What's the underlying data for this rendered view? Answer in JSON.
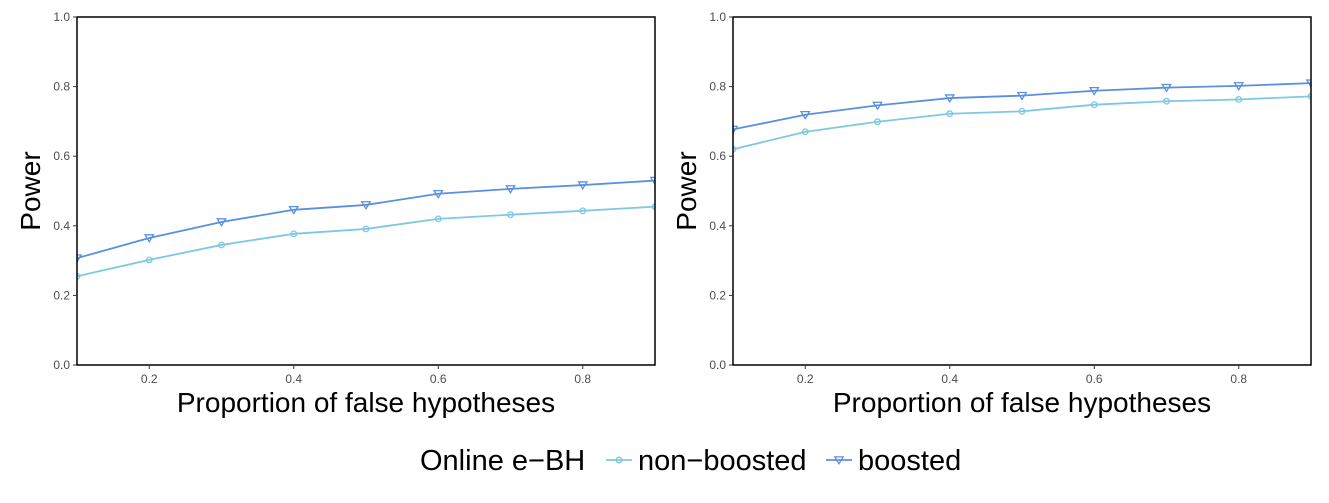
{
  "chart_data": [
    {
      "type": "line",
      "xlabel": "Proportion of false hypotheses",
      "ylabel": "Power",
      "xlim": [
        0.1,
        0.9
      ],
      "ylim": [
        0.0,
        1.0
      ],
      "xticks": [
        "0.2",
        "0.4",
        "0.6",
        "0.8"
      ],
      "yticks": [
        "0.0",
        "0.2",
        "0.4",
        "0.6",
        "0.8",
        "1.0"
      ],
      "grid": false,
      "x": [
        0.1,
        0.2,
        0.3,
        0.4,
        0.5,
        0.6,
        0.7,
        0.8,
        0.9
      ],
      "series": [
        {
          "name": "non−boosted",
          "values": [
            0.255,
            0.302,
            0.345,
            0.377,
            0.391,
            0.42,
            0.432,
            0.443,
            0.455
          ]
        },
        {
          "name": "boosted",
          "values": [
            0.307,
            0.365,
            0.411,
            0.446,
            0.46,
            0.492,
            0.506,
            0.517,
            0.53
          ]
        }
      ]
    },
    {
      "type": "line",
      "xlabel": "Proportion of false hypotheses",
      "ylabel": "Power",
      "xlim": [
        0.1,
        0.9
      ],
      "ylim": [
        0.0,
        1.0
      ],
      "xticks": [
        "0.2",
        "0.4",
        "0.6",
        "0.8"
      ],
      "yticks": [
        "0.0",
        "0.2",
        "0.4",
        "0.6",
        "0.8",
        "1.0"
      ],
      "grid": false,
      "x": [
        0.1,
        0.2,
        0.3,
        0.4,
        0.5,
        0.6,
        0.7,
        0.8,
        0.9
      ],
      "series": [
        {
          "name": "non−boosted",
          "values": [
            0.62,
            0.67,
            0.699,
            0.722,
            0.729,
            0.748,
            0.758,
            0.763,
            0.772
          ]
        },
        {
          "name": "boosted",
          "values": [
            0.677,
            0.719,
            0.746,
            0.767,
            0.774,
            0.788,
            0.797,
            0.802,
            0.81
          ]
        }
      ]
    }
  ],
  "legend": {
    "title": "Online e−BH",
    "placement": "bottom",
    "items": [
      {
        "label": "non−boosted",
        "marker": "circle",
        "color": "#7ec8e3"
      },
      {
        "label": "boosted",
        "marker": "triangle-down",
        "color": "#5b8fe0"
      }
    ]
  },
  "colors": {
    "non_boosted": "#7ec8e3",
    "boosted": "#5b8fe0"
  }
}
